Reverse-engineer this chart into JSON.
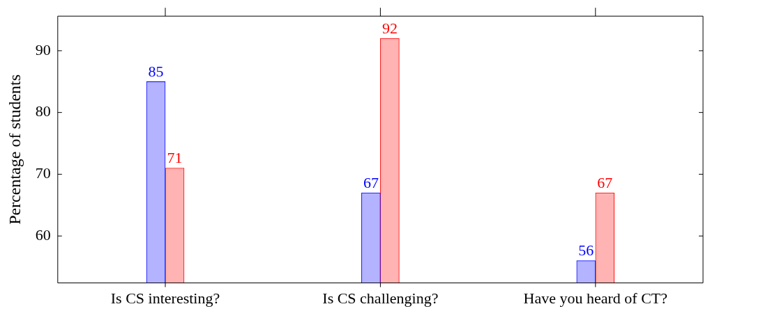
{
  "chart_data": {
    "type": "bar",
    "ylabel": "Percentage of students",
    "categories": [
      "Is CS interesting?",
      "Is CS challenging?",
      "Have you heard of CT?"
    ],
    "series": [
      {
        "color": "#b3b3ff",
        "values": [
          85,
          67,
          56
        ]
      },
      {
        "color": "#ffb3b3",
        "values": [
          71,
          92,
          67
        ]
      }
    ],
    "ylim": [
      52.4,
      95.6
    ],
    "yticks": [
      60,
      70,
      80,
      90
    ],
    "grid": false,
    "legend": false,
    "data_labels": true
  }
}
